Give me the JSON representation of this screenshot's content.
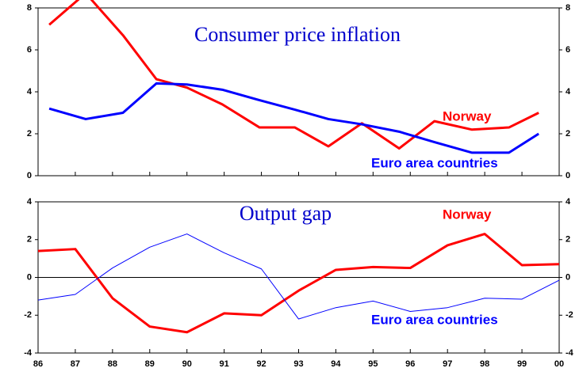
{
  "chart_data": [
    {
      "type": "line",
      "title": "Consumer price inflation",
      "xlim": [
        86,
        100
      ],
      "ylim": [
        0,
        8
      ],
      "yticks": [
        0,
        2,
        4,
        6,
        8
      ],
      "series": [
        {
          "name": "Norway",
          "color": "#ff0000",
          "x": [
            86.3,
            87.28,
            88.28,
            89.18,
            90.0,
            90.95,
            91.95,
            92.9,
            93.8,
            94.7,
            95.7,
            96.65,
            97.65,
            98.65,
            99.45
          ],
          "values": [
            7.2,
            8.7,
            6.7,
            4.6,
            4.2,
            3.4,
            2.3,
            2.3,
            1.4,
            2.5,
            1.3,
            2.6,
            2.2,
            2.3,
            3.0
          ]
        },
        {
          "name": "Euro area countries",
          "color": "#0000ff",
          "x": [
            86.3,
            87.28,
            88.28,
            89.18,
            90.0,
            90.95,
            91.95,
            92.9,
            93.8,
            94.7,
            95.7,
            96.65,
            97.65,
            98.65,
            99.45
          ],
          "values": [
            3.2,
            2.7,
            3.0,
            4.4,
            4.35,
            4.1,
            3.6,
            3.15,
            2.7,
            2.45,
            2.1,
            1.6,
            1.1,
            1.1,
            2.0
          ]
        }
      ]
    },
    {
      "type": "line",
      "title": "Output gap",
      "xlim": [
        86,
        100
      ],
      "ylim": [
        -4,
        4
      ],
      "yticks": [
        -4,
        -2,
        0,
        2,
        4
      ],
      "xticks": [
        86,
        87,
        88,
        89,
        90,
        91,
        92,
        93,
        94,
        95,
        96,
        97,
        98,
        99,
        {
          "value": 100,
          "label": "00"
        }
      ],
      "series": [
        {
          "name": "Norway",
          "color": "#ff0000",
          "x": [
            86,
            87,
            88,
            89,
            90,
            91,
            92,
            93,
            94,
            95,
            96,
            97,
            98,
            99,
            100
          ],
          "values": [
            1.4,
            1.5,
            -1.1,
            -2.6,
            -2.9,
            -1.9,
            -2.0,
            -0.7,
            0.4,
            0.55,
            0.5,
            1.7,
            2.3,
            0.65,
            0.7
          ]
        },
        {
          "name": "Euro area countries",
          "color": "#0000ff",
          "x": [
            86,
            87,
            88,
            89,
            90,
            91,
            92,
            93,
            94,
            95,
            96,
            97,
            98,
            99,
            100
          ],
          "values": [
            -1.2,
            -0.9,
            0.5,
            1.6,
            2.3,
            1.3,
            0.45,
            -2.2,
            -1.6,
            -1.25,
            -1.8,
            -1.6,
            -1.1,
            -1.15,
            -0.15
          ]
        }
      ]
    }
  ]
}
